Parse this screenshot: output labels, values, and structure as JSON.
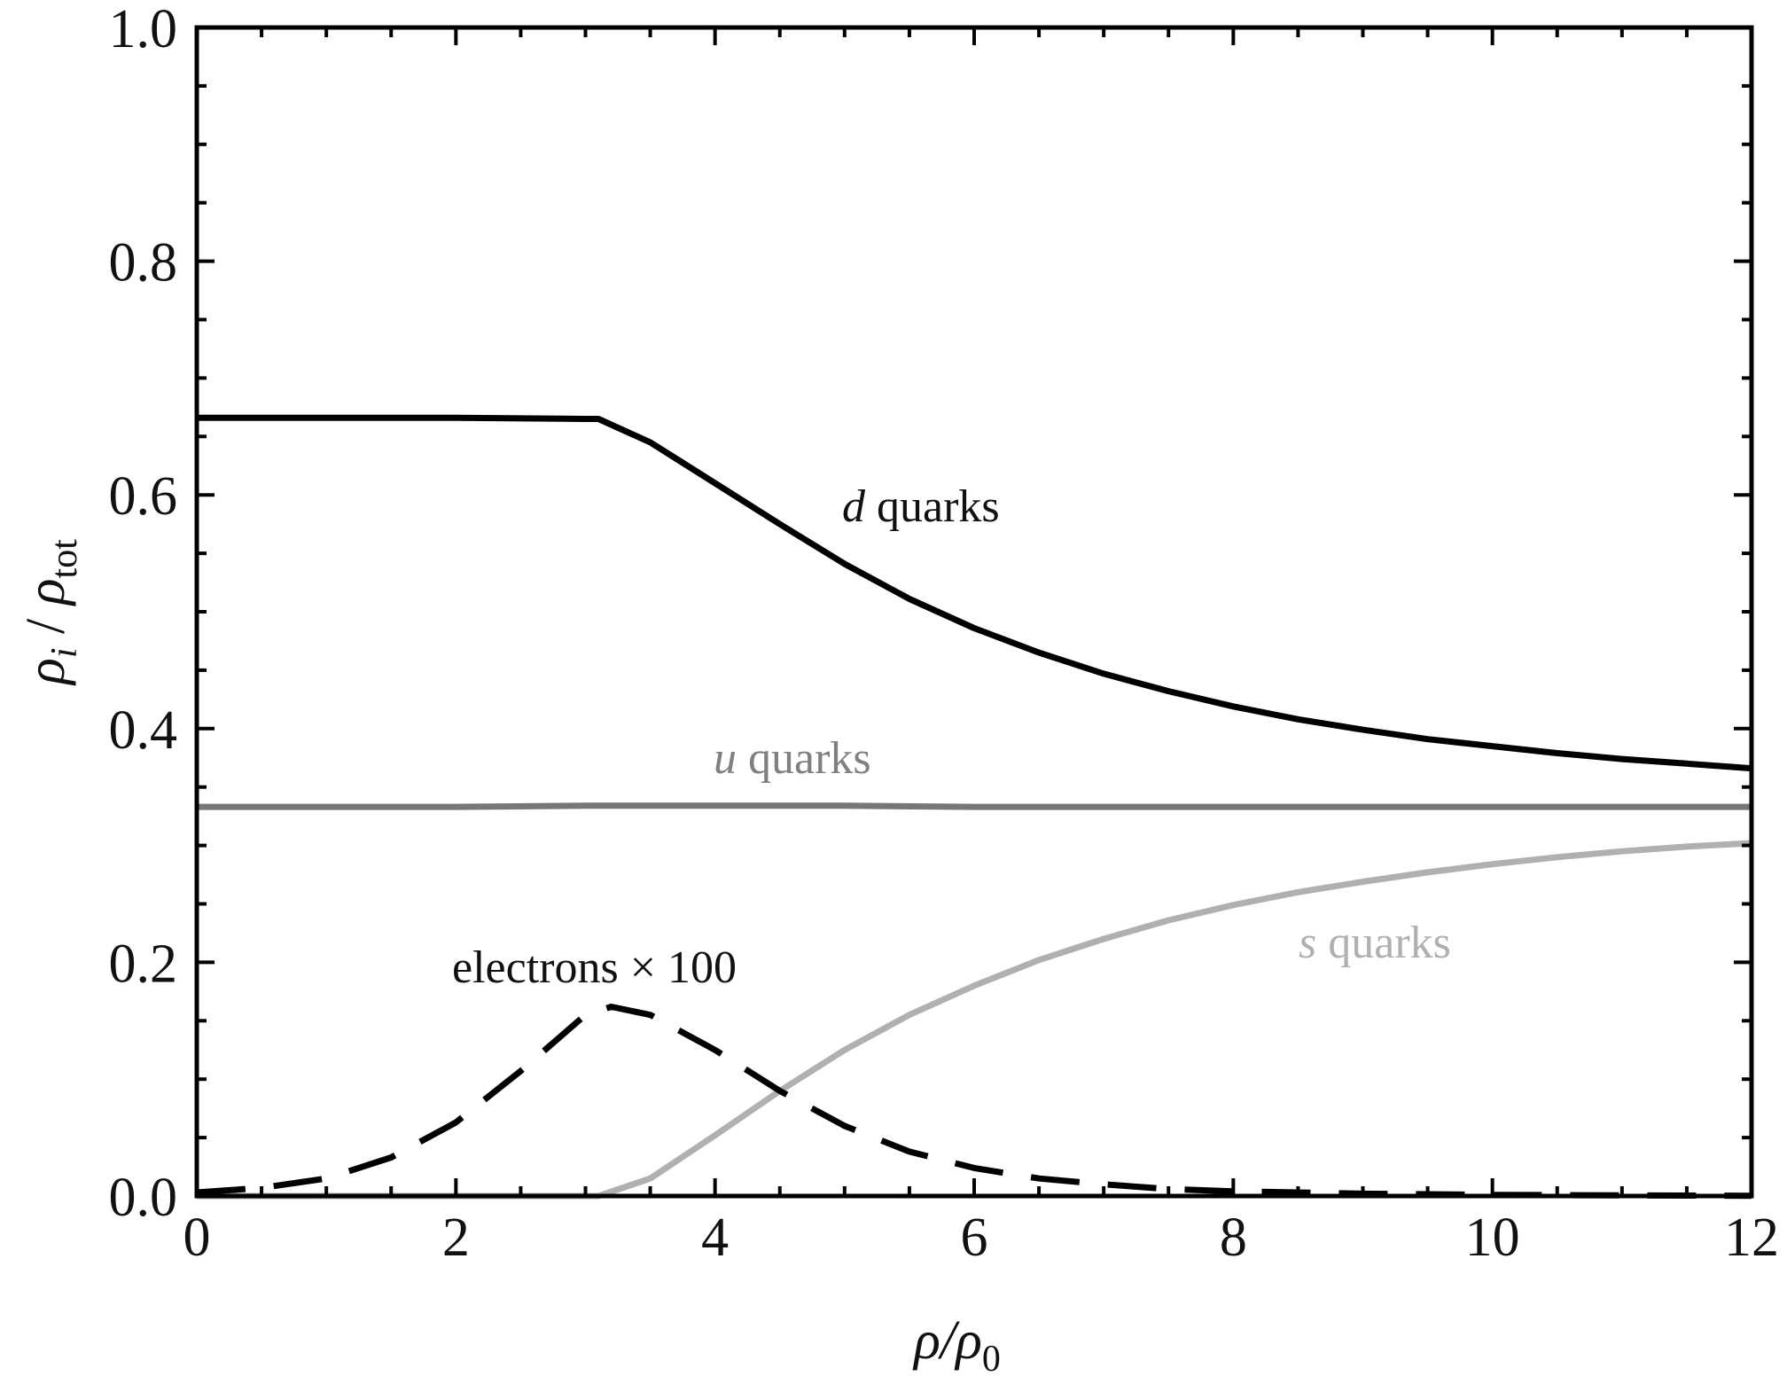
{
  "chart_data": {
    "type": "line",
    "xlabel": {
      "main": "ρ/ρ",
      "sub": "0"
    },
    "ylabel": {
      "a": "ρ",
      "a_sub": "i",
      "sep": " / ",
      "b": "ρ",
      "b_sub": "tot"
    },
    "xlim": [
      0,
      12
    ],
    "ylim": [
      0,
      1.0
    ],
    "x_ticks": [
      "0",
      "2",
      "4",
      "6",
      "8",
      "10",
      "12"
    ],
    "y_ticks": [
      "0.0",
      "0.2",
      "0.4",
      "0.6",
      "0.8",
      "1.0"
    ],
    "grid": false,
    "series": [
      {
        "name": "d quarks",
        "color": "#000000",
        "dash": "solid",
        "x": [
          0,
          1,
          2,
          3,
          3.1,
          3.5,
          4,
          4.5,
          5,
          5.5,
          6,
          6.5,
          7,
          7.5,
          8,
          8.5,
          9,
          9.5,
          10,
          10.5,
          11,
          11.5,
          12
        ],
        "y": [
          0.666,
          0.666,
          0.666,
          0.665,
          0.665,
          0.645,
          0.61,
          0.575,
          0.541,
          0.511,
          0.486,
          0.465,
          0.447,
          0.432,
          0.419,
          0.408,
          0.399,
          0.391,
          0.385,
          0.379,
          0.374,
          0.37,
          0.366
        ]
      },
      {
        "name": "u quarks",
        "color": "#777777",
        "dash": "solid",
        "x": [
          0,
          1,
          2,
          3,
          4,
          5,
          6,
          7,
          8,
          9,
          10,
          11,
          12
        ],
        "y": [
          0.333,
          0.333,
          0.333,
          0.334,
          0.334,
          0.334,
          0.333,
          0.333,
          0.333,
          0.333,
          0.333,
          0.333,
          0.333
        ]
      },
      {
        "name": "s quarks",
        "color": "#b0b0b0",
        "dash": "solid",
        "x": [
          0,
          1,
          2,
          3,
          3.1,
          3.5,
          4,
          4.5,
          5,
          5.5,
          6,
          6.5,
          7,
          7.5,
          8,
          8.5,
          9,
          9.5,
          10,
          10.5,
          11,
          11.5,
          12
        ],
        "y": [
          0.0,
          0.0,
          0.0,
          0.0,
          0.0,
          0.015,
          0.052,
          0.09,
          0.125,
          0.155,
          0.18,
          0.202,
          0.22,
          0.236,
          0.249,
          0.26,
          0.269,
          0.277,
          0.284,
          0.29,
          0.295,
          0.299,
          0.302
        ]
      },
      {
        "name": "electrons × 100",
        "color": "#000000",
        "dash": "dashed",
        "x": [
          0,
          0.5,
          1,
          1.5,
          2,
          2.5,
          3,
          3.2,
          3.5,
          4,
          4.5,
          5,
          5.5,
          6,
          6.5,
          7,
          7.5,
          8,
          9,
          10,
          11,
          12
        ],
        "y": [
          0.003,
          0.007,
          0.015,
          0.033,
          0.063,
          0.107,
          0.155,
          0.162,
          0.155,
          0.125,
          0.09,
          0.06,
          0.038,
          0.024,
          0.015,
          0.01,
          0.006,
          0.004,
          0.002,
          0.001,
          0.0005,
          0.0002
        ]
      }
    ],
    "annotations": [
      {
        "italic": "d",
        "text": " quarks",
        "color": "#000000"
      },
      {
        "italic": "u",
        "text": " quarks",
        "color": "#808080"
      },
      {
        "italic": "s",
        "text": " quarks",
        "color": "#b0b0b0"
      },
      {
        "italic": "",
        "text": "electrons × 100",
        "color": "#000000"
      }
    ]
  }
}
